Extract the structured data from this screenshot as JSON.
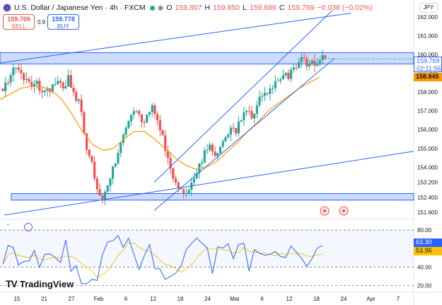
{
  "header": {
    "symbol_title": "U.S. Dollar / Japanese Yen · 4h · FXCM",
    "ohlc": [
      {
        "label": "O",
        "value": "159.807"
      },
      {
        "label": "H",
        "value": "159.850"
      },
      {
        "label": "L",
        "value": "159.686"
      },
      {
        "label": "C",
        "value": "159.769"
      }
    ],
    "change": "−0.038 (−0.02%)"
  },
  "trade": {
    "sell_price": "159.769",
    "sell_label": "SELL",
    "spread": "0.9",
    "buy_price": "159.778",
    "buy_label": "BUY"
  },
  "currency": "JPY",
  "price_tags": {
    "current_price": "159.769",
    "countdown": "02:11:56",
    "ma_value": "158.845",
    "rsi_value": "63.30",
    "rsi_ma_value": "53.96"
  },
  "brand": "TradingView",
  "colors": {
    "up": "#26a69a",
    "down": "#ef5350",
    "ma": "#ff9800",
    "trendline": "#2962ff",
    "zone_fill": "#bbd0fb",
    "rsi": "#2962ff",
    "rsi_ma": "#f9c710"
  },
  "chart_data": {
    "type": "candlestick",
    "price_axis": {
      "ticks": [
        "162.000",
        "161.000",
        "160.000",
        "159.000",
        "158.000",
        "157.000",
        "156.000",
        "155.000",
        "154.000",
        "153.200",
        "152.400",
        "151.600"
      ],
      "ylim": [
        151.3,
        162.6
      ]
    },
    "time_axis": {
      "ticks": [
        "15",
        "21",
        "27",
        "Feb",
        "6",
        "12",
        "18",
        "24",
        "Mar",
        "6",
        "12",
        "18",
        "24",
        "Apr",
        "7"
      ]
    },
    "zones": [
      {
        "low": 159.5,
        "high": 160.1
      },
      {
        "low": 152.25,
        "high": 152.6
      }
    ],
    "close_path": [
      158.5,
      158.9,
      159.3,
      159.0,
      158.7,
      158.3,
      158.6,
      158.0,
      158.2,
      158.4,
      158.6,
      158.2,
      158.9,
      158.0,
      157.6,
      155.8,
      154.6,
      153.4,
      152.5,
      152.7,
      153.4,
      154.2,
      155.3,
      156.1,
      156.8,
      157.0,
      156.4,
      156.8,
      157.3,
      156.5,
      155.7,
      154.5,
      153.4,
      152.9,
      152.6,
      152.8,
      153.4,
      154.2,
      154.9,
      155.2,
      154.6,
      155.1,
      155.6,
      156.1,
      155.8,
      156.5,
      157.0,
      156.6,
      157.3,
      157.8,
      157.9,
      158.2,
      158.6,
      158.9,
      158.7,
      159.3,
      159.6,
      159.8,
      159.5,
      159.4,
      159.7,
      159.8
    ],
    "ma_path": [
      157.6,
      157.9,
      158.2,
      158.3,
      158.3,
      158.1,
      157.6,
      156.8,
      155.9,
      155.2,
      154.9,
      155.0,
      155.5,
      155.9,
      155.9,
      155.5,
      155.0,
      154.5,
      154.1,
      153.9,
      154.0,
      154.3,
      154.8,
      155.3,
      155.9,
      156.4,
      157.0,
      157.4,
      157.8,
      158.2,
      158.5,
      158.8
    ],
    "rsi": {
      "levels": [
        80,
        40,
        20
      ],
      "value": 63.3,
      "ma_value": 53.96
    }
  }
}
